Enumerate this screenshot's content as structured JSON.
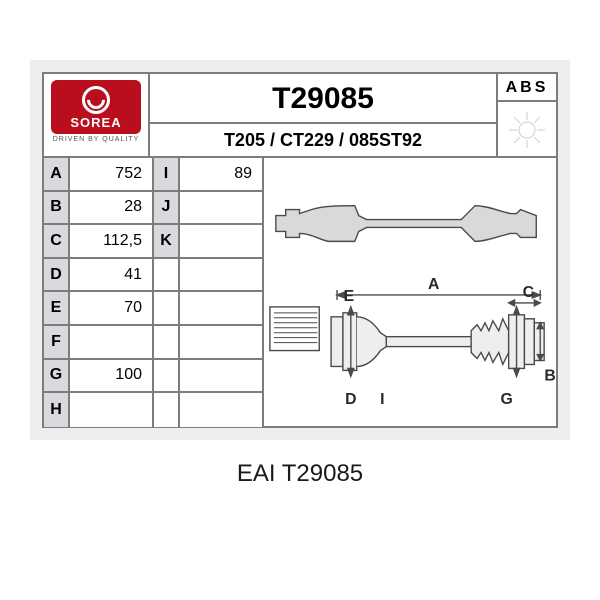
{
  "brand": {
    "name": "SOREA",
    "tagline": "DRIVEN BY QUALITY",
    "bg_color": "#b90f1d"
  },
  "part_number": "T29085",
  "cross_refs": "T205 / CT229 / 085ST92",
  "abs": {
    "label": "ABS"
  },
  "spec_key_bg": "#d9dadd",
  "specs_left": [
    {
      "key": "A",
      "val": "752"
    },
    {
      "key": "B",
      "val": "28"
    },
    {
      "key": "C",
      "val": "112,5"
    },
    {
      "key": "D",
      "val": "41"
    },
    {
      "key": "E",
      "val": "70"
    },
    {
      "key": "F",
      "val": ""
    },
    {
      "key": "G",
      "val": "100"
    },
    {
      "key": "H",
      "val": ""
    }
  ],
  "specs_right": [
    {
      "key": "I",
      "val": "89"
    },
    {
      "key": "J",
      "val": ""
    },
    {
      "key": "K",
      "val": ""
    }
  ],
  "diagram_style": {
    "stroke": "#4a4a4a",
    "stroke_width": 1.4,
    "fill": "#d0d0d0",
    "label_font": 16
  },
  "diagram_labels": [
    "A",
    "B",
    "C",
    "D",
    "E",
    "G",
    "I"
  ],
  "caption": {
    "brand": "EAI",
    "code": "T29085"
  }
}
